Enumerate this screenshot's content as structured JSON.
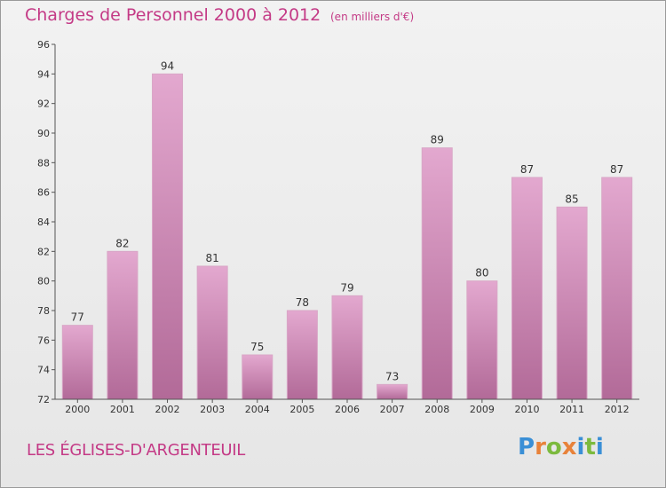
{
  "header": {
    "title": "Charges de Personnel 2000 à 2012",
    "subtitle": "(en milliers d'€)"
  },
  "footer": {
    "place": "LES ÉGLISES-D'ARGENTEUIL",
    "logo_text": "Proxiti"
  },
  "colors": {
    "accent": "#c43a86",
    "bar_top": "#e3a8cf",
    "bar_bottom": "#b26a98",
    "logo_letters": [
      "#3a8fd6",
      "#e8823a",
      "#7cba3e",
      "#e8823a",
      "#3a8fd6",
      "#7cba3e",
      "#3a8fd6"
    ]
  },
  "chart_data": {
    "type": "bar",
    "title": "Charges de Personnel 2000 à 2012",
    "subtitle": "(en milliers d'€)",
    "categories": [
      "2000",
      "2001",
      "2002",
      "2003",
      "2004",
      "2005",
      "2006",
      "2007",
      "2008",
      "2009",
      "2010",
      "2011",
      "2012"
    ],
    "values": [
      77,
      82,
      94,
      81,
      75,
      78,
      79,
      73,
      89,
      80,
      87,
      85,
      87
    ],
    "ylim": [
      72,
      96
    ],
    "yticks": [
      72,
      74,
      76,
      78,
      80,
      82,
      84,
      86,
      88,
      90,
      92,
      94,
      96
    ],
    "grid": false,
    "data_labels": true
  }
}
